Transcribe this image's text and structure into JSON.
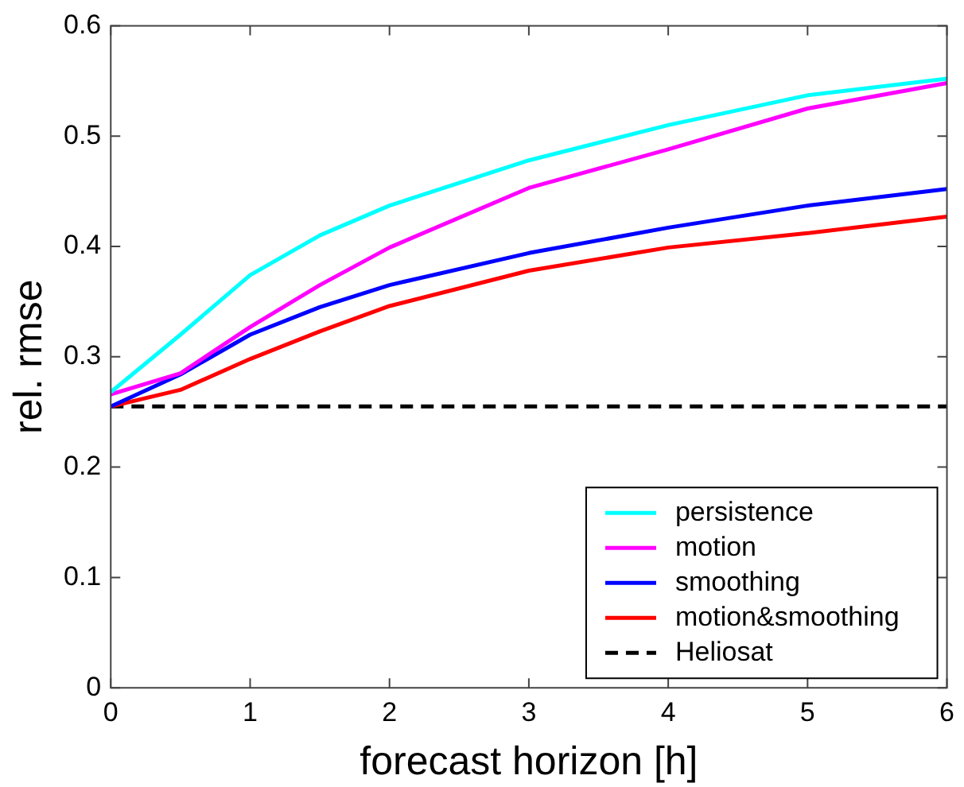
{
  "chart_data": {
    "type": "line",
    "xlabel": "forecast horizon [h]",
    "ylabel": "rel. rmse",
    "x": [
      0,
      0.5,
      1,
      1.5,
      2,
      3,
      4,
      5,
      6
    ],
    "series": [
      {
        "name": "persistence",
        "color": "#00ffff",
        "values": [
          0.268,
          0.32,
          0.374,
          0.41,
          0.437,
          0.478,
          0.51,
          0.537,
          0.552
        ]
      },
      {
        "name": "motion",
        "color": "#ff00ff",
        "values": [
          0.266,
          0.285,
          0.327,
          0.365,
          0.399,
          0.453,
          0.488,
          0.525,
          0.548
        ]
      },
      {
        "name": "smoothing",
        "color": "#0000ff",
        "values": [
          0.255,
          0.284,
          0.32,
          0.345,
          0.365,
          0.394,
          0.417,
          0.437,
          0.452
        ]
      },
      {
        "name": "motion&smoothing",
        "color": "#ff0000",
        "values": [
          0.255,
          0.27,
          0.298,
          0.323,
          0.346,
          0.378,
          0.399,
          0.412,
          0.427
        ]
      },
      {
        "name": "Heliosat",
        "color": "#000000",
        "x": [
          0,
          6
        ],
        "values": [
          0.255,
          0.255
        ],
        "line_style": "dashed"
      }
    ],
    "xlim": [
      0,
      6
    ],
    "xticks": [
      0,
      1,
      2,
      3,
      4,
      5,
      6
    ],
    "ylim": [
      0,
      0.6
    ],
    "yticks": [
      0,
      0.1,
      0.2,
      0.3,
      0.4,
      0.5,
      0.6
    ],
    "grid": false,
    "legend": "bottom right",
    "marker": "none",
    "line_style": "solid"
  }
}
